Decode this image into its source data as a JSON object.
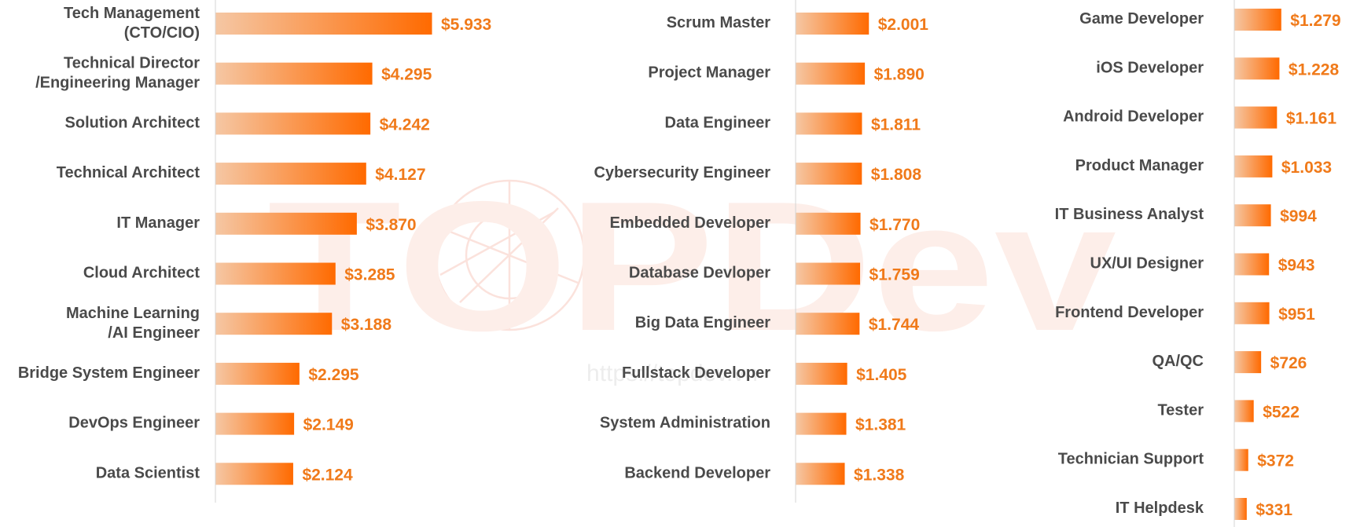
{
  "watermark": {
    "brand": "TOPDev",
    "url": "https://topdev.vn"
  },
  "colors": {
    "bar_start": "#f5c7a4",
    "bar_end": "#ff6a00",
    "value_text": "#f07a1a",
    "label_text": "#4a4a4a",
    "axis": "#d4d4d4",
    "watermark": "#fdeee9"
  },
  "chart_data": [
    {
      "type": "bar",
      "orientation": "horizontal",
      "value_prefix": "$",
      "categories": [
        [
          "Tech Management",
          "(CTO/CIO)"
        ],
        [
          "Technical Director",
          "/Engineering Manager"
        ],
        [
          "Solution Architect"
        ],
        [
          "Technical Architect"
        ],
        [
          "IT Manager"
        ],
        [
          "Cloud Architect"
        ],
        [
          "Machine Learning",
          "/AI Engineer"
        ],
        [
          "Bridge System Engineer"
        ],
        [
          "DevOps Engineer"
        ],
        [
          "Data Scientist"
        ]
      ],
      "values": [
        5933,
        4295,
        4242,
        4127,
        3870,
        3285,
        3188,
        2295,
        2149,
        2124
      ],
      "value_labels": [
        "$5.933",
        "$4.295",
        "$4.242",
        "$4.127",
        "$3.870",
        "$3.285",
        "$3.188",
        "$2.295",
        "$2.149",
        "$2.124"
      ]
    },
    {
      "type": "bar",
      "orientation": "horizontal",
      "value_prefix": "$",
      "categories": [
        [
          "Scrum Master"
        ],
        [
          "Project Manager"
        ],
        [
          "Data Engineer"
        ],
        [
          "Cybersecurity Engineer"
        ],
        [
          "Embedded Developer"
        ],
        [
          "Database Devloper"
        ],
        [
          "Big Data Engineer"
        ],
        [
          "Fullstack Developer"
        ],
        [
          "System Administration"
        ],
        [
          "Backend Developer"
        ]
      ],
      "values": [
        2001,
        1890,
        1811,
        1808,
        1770,
        1759,
        1744,
        1405,
        1381,
        1338
      ],
      "value_labels": [
        "$2.001",
        "$1.890",
        "$1.811",
        "$1.808",
        "$1.770",
        "$1.759",
        "$1.744",
        "$1.405",
        "$1.381",
        "$1.338"
      ]
    },
    {
      "type": "bar",
      "orientation": "horizontal",
      "value_prefix": "$",
      "categories": [
        [
          "Game Developer"
        ],
        [
          "iOS Developer"
        ],
        [
          "Android Developer"
        ],
        [
          "Product Manager"
        ],
        [
          "IT Business Analyst"
        ],
        [
          "UX/UI Designer"
        ],
        [
          "Frontend Developer"
        ],
        [
          "QA/QC"
        ],
        [
          "Tester"
        ],
        [
          "Technician Support"
        ],
        [
          "IT Helpdesk"
        ]
      ],
      "values": [
        1279,
        1228,
        1161,
        1033,
        994,
        943,
        951,
        726,
        522,
        372,
        331
      ],
      "value_labels": [
        "$1.279",
        "$1.228",
        "$1.161",
        "$1.033",
        "$994",
        "$943",
        "$951",
        "$726",
        "$522",
        "$372",
        "$331"
      ]
    }
  ]
}
